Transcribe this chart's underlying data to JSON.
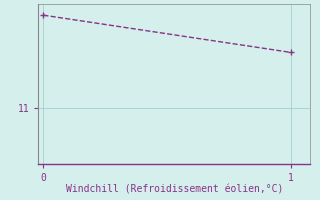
{
  "x": [
    0,
    1
  ],
  "y": [
    13.5,
    12.5
  ],
  "line_color": "#883388",
  "line_style": "--",
  "line_width": 1.0,
  "marker": "+",
  "marker_size": 5,
  "marker_color": "#883388",
  "background_color": "#d4efec",
  "grid_color": "#aad4d0",
  "xlabel": "Windchill (Refroidissement éolien,°C)",
  "xlabel_color": "#883388",
  "xlabel_fontsize": 7,
  "tick_color": "#883388",
  "tick_fontsize": 7,
  "ytick_label": "11",
  "ytick_value": 11,
  "xtick_values": [
    0,
    1
  ],
  "ylim": [
    9.5,
    13.8
  ],
  "xlim": [
    -0.02,
    1.08
  ],
  "spine_color": "#888888",
  "bottom_spine_color": "#883388"
}
